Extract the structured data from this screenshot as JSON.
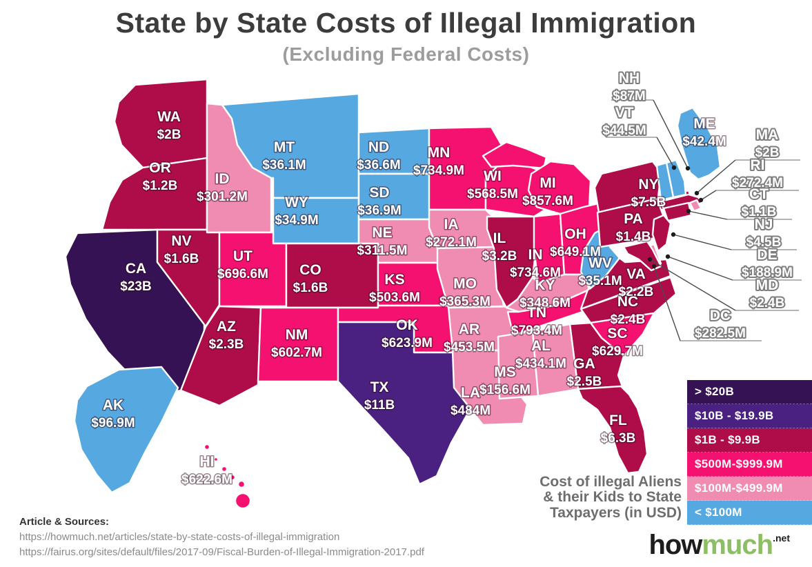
{
  "header": {
    "title": "State by State Costs of Illegal Immigration",
    "subtitle": "(Excluding Federal Costs)"
  },
  "legend": {
    "items": [
      {
        "label": "> $20B",
        "color": "#351253"
      },
      {
        "label": "$10B - $19.9B",
        "color": "#4A2181"
      },
      {
        "label": "$1B - $9.9B",
        "color": "#AE0D49"
      },
      {
        "label": "$500M-$999.9M",
        "color": "#F5116F"
      },
      {
        "label": "$100M-$499.9M",
        "color": "#F08CB1"
      },
      {
        "label": "< $100M",
        "color": "#55A9E0"
      }
    ]
  },
  "caption": {
    "lines": [
      "Cost of illegal Aliens",
      "& their Kids to State",
      "Taxpayers (in USD)"
    ]
  },
  "sources": {
    "heading": "Article & Sources:",
    "urls": [
      "https://howmuch.net/articles/state-by-state-costs-of-illegal-immigration",
      "https://fairus.org/sites/default/files/2017-09/Fiscal-Burden-of-Illegal-Immigration-2017.pdf"
    ]
  },
  "logo": {
    "black": "how",
    "green": "much",
    "suffix": ".net",
    "green_color": "#8CBF64"
  },
  "chart_data": {
    "type": "choropleth-map",
    "title": "State by State Costs of Illegal Immigration (Excluding Federal Costs)",
    "unit": "USD",
    "tiers": [
      {
        "id": "t1",
        "label": "> $20B",
        "color": "#351253"
      },
      {
        "id": "t2",
        "label": "$10B - $19.9B",
        "color": "#4A2181"
      },
      {
        "id": "t3",
        "label": "$1B - $9.9B",
        "color": "#AE0D49"
      },
      {
        "id": "t4",
        "label": "$500M-$999.9M",
        "color": "#F5116F"
      },
      {
        "id": "t5",
        "label": "$100M-$499.9M",
        "color": "#F08CB1"
      },
      {
        "id": "t6",
        "label": "< $100M",
        "color": "#55A9E0"
      }
    ],
    "states": [
      {
        "abbr": "WA",
        "value": "$2B",
        "tier": "t3"
      },
      {
        "abbr": "OR",
        "value": "$1.2B",
        "tier": "t3"
      },
      {
        "abbr": "CA",
        "value": "$23B",
        "tier": "t1"
      },
      {
        "abbr": "NV",
        "value": "$1.6B",
        "tier": "t3"
      },
      {
        "abbr": "ID",
        "value": "$301.2M",
        "tier": "t5"
      },
      {
        "abbr": "MT",
        "value": "$36.1M",
        "tier": "t6"
      },
      {
        "abbr": "WY",
        "value": "$34.9M",
        "tier": "t6"
      },
      {
        "abbr": "UT",
        "value": "$696.6M",
        "tier": "t4"
      },
      {
        "abbr": "CO",
        "value": "$1.6B",
        "tier": "t3"
      },
      {
        "abbr": "AZ",
        "value": "$2.3B",
        "tier": "t3"
      },
      {
        "abbr": "NM",
        "value": "$602.7M",
        "tier": "t4"
      },
      {
        "abbr": "ND",
        "value": "$36.6M",
        "tier": "t6"
      },
      {
        "abbr": "SD",
        "value": "$36.9M",
        "tier": "t6"
      },
      {
        "abbr": "NE",
        "value": "$311.5M",
        "tier": "t5"
      },
      {
        "abbr": "KS",
        "value": "$503.6M",
        "tier": "t4"
      },
      {
        "abbr": "OK",
        "value": "$623.9M",
        "tier": "t4"
      },
      {
        "abbr": "TX",
        "value": "$11B",
        "tier": "t2"
      },
      {
        "abbr": "MN",
        "value": "$734.9M",
        "tier": "t4"
      },
      {
        "abbr": "IA",
        "value": "$272.1M",
        "tier": "t5"
      },
      {
        "abbr": "MO",
        "value": "$365.3M",
        "tier": "t5"
      },
      {
        "abbr": "AR",
        "value": "$453.5M",
        "tier": "t5"
      },
      {
        "abbr": "LA",
        "value": "$484M",
        "tier": "t5"
      },
      {
        "abbr": "WI",
        "value": "$568.5M",
        "tier": "t4"
      },
      {
        "abbr": "IL",
        "value": "$3.2B",
        "tier": "t3"
      },
      {
        "abbr": "MI",
        "value": "$857.6M",
        "tier": "t4"
      },
      {
        "abbr": "IN",
        "value": "$734.6M",
        "tier": "t4"
      },
      {
        "abbr": "OH",
        "value": "$649.1M",
        "tier": "t4"
      },
      {
        "abbr": "KY",
        "value": "$348.6M",
        "tier": "t5"
      },
      {
        "abbr": "TN",
        "value": "$793.4M",
        "tier": "t4"
      },
      {
        "abbr": "WV",
        "value": "$35.1M",
        "tier": "t6"
      },
      {
        "abbr": "VA",
        "value": "$2.2B",
        "tier": "t3"
      },
      {
        "abbr": "NC",
        "value": "$2.4B",
        "tier": "t3"
      },
      {
        "abbr": "SC",
        "value": "$629.7M",
        "tier": "t4"
      },
      {
        "abbr": "GA",
        "value": "$2.5B",
        "tier": "t3"
      },
      {
        "abbr": "AL",
        "value": "$434.1M",
        "tier": "t5"
      },
      {
        "abbr": "MS",
        "value": "$156.6M",
        "tier": "t5"
      },
      {
        "abbr": "FL",
        "value": "$6.3B",
        "tier": "t3"
      },
      {
        "abbr": "NY",
        "value": "$7.5B",
        "tier": "t3"
      },
      {
        "abbr": "PA",
        "value": "$1.4B",
        "tier": "t3"
      },
      {
        "abbr": "AK",
        "value": "$96.9M",
        "tier": "t6"
      },
      {
        "abbr": "HI",
        "value": "$622.6M",
        "tier": "t4"
      },
      {
        "abbr": "ME",
        "value": "$42.4M",
        "tier": "t6"
      },
      {
        "abbr": "NH",
        "value": "$87M",
        "tier": "t6"
      },
      {
        "abbr": "VT",
        "value": "$44.5M",
        "tier": "t6"
      },
      {
        "abbr": "MA",
        "value": "$2B",
        "tier": "t3"
      },
      {
        "abbr": "RI",
        "value": "$272.4M",
        "tier": "t5"
      },
      {
        "abbr": "CT",
        "value": "$1.1B",
        "tier": "t3"
      },
      {
        "abbr": "NJ",
        "value": "$4.5B",
        "tier": "t3"
      },
      {
        "abbr": "DE",
        "value": "$188.9M",
        "tier": "t5"
      },
      {
        "abbr": "MD",
        "value": "$2.4B",
        "tier": "t3"
      },
      {
        "abbr": "DC",
        "value": "$282.5M",
        "tier": "t5"
      }
    ]
  }
}
